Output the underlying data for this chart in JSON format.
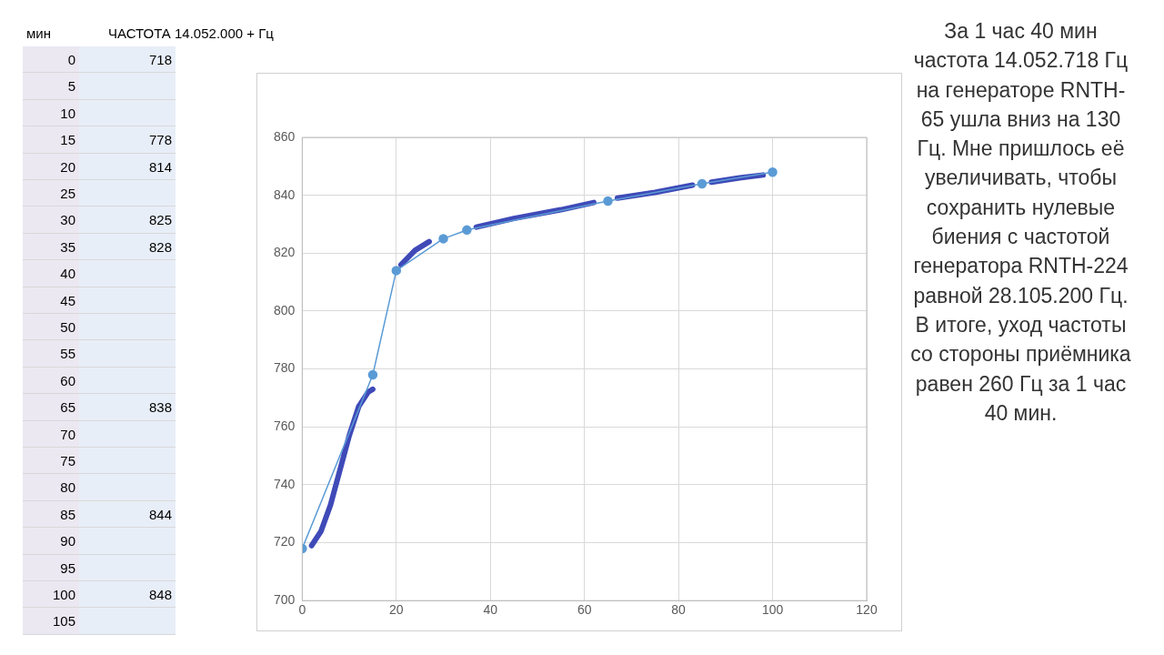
{
  "chart_data": [
    {
      "type": "line",
      "series": [
        {
          "color": "#5b9bd5",
          "marker": "circle",
          "x": [
            0,
            15,
            20,
            30,
            35,
            65,
            85,
            100
          ],
          "values": [
            718,
            778,
            814,
            825,
            828,
            838,
            844,
            848
          ]
        },
        {
          "type": "line",
          "color": "#3f4ab8",
          "marker": "none",
          "x": [
            2,
            4,
            6,
            8,
            10,
            12,
            14,
            15,
            17,
            21,
            24,
            27,
            29,
            37,
            45,
            55,
            62,
            63,
            67,
            75,
            83,
            84,
            87,
            93,
            98
          ],
          "values": [
            719,
            724,
            733,
            745,
            757,
            767,
            772,
            773,
            null,
            816,
            821,
            824,
            null,
            829,
            832,
            835,
            837.5,
            null,
            839,
            841,
            843.5,
            null,
            844.5,
            846,
            847
          ]
        }
      ],
      "xlim": [
        0,
        120
      ],
      "xticks": [
        0,
        20,
        40,
        60,
        80,
        100,
        120
      ],
      "ylim": [
        700,
        860
      ],
      "yticks": [
        700,
        720,
        740,
        760,
        780,
        800,
        820,
        840,
        860
      ],
      "grid": true,
      "legend": false,
      "annotations": [
        "За 1 час 40 мин частота 14.052.718 Гц на генераторе RNTH-65 ушла вниз на 130 Гц. Мне пришлось её увеличивать, чтобы сохранить нулевые биения с частотой генератора RNTH-224 равной 28.105.200 Гц. В итоге, уход частоты со стороны приёмника равен 260 Гц за 1 час 40 мин."
      ]
    },
    {
      "type": "heatmap",
      "ylabel": "мин",
      "categories": [
        "ЧАСТОТА 14.052.000 + Гц"
      ],
      "y_categories": [
        "0",
        "5",
        "10",
        "15",
        "20",
        "25",
        "30",
        "35",
        "40",
        "45",
        "50",
        "55",
        "60",
        "65",
        "70",
        "75",
        "80",
        "85",
        "90",
        "95",
        "100",
        "105"
      ],
      "cells": [
        [
          718
        ],
        [
          null
        ],
        [
          null
        ],
        [
          778
        ],
        [
          814
        ],
        [
          null
        ],
        [
          825
        ],
        [
          828
        ],
        [
          null
        ],
        [
          null
        ],
        [
          null
        ],
        [
          null
        ],
        [
          null
        ],
        [
          838
        ],
        [
          null
        ],
        [
          null
        ],
        [
          null
        ],
        [
          844
        ],
        [
          null
        ],
        [
          null
        ],
        [
          848
        ],
        [
          null
        ]
      ],
      "data_labels": true
    }
  ]
}
